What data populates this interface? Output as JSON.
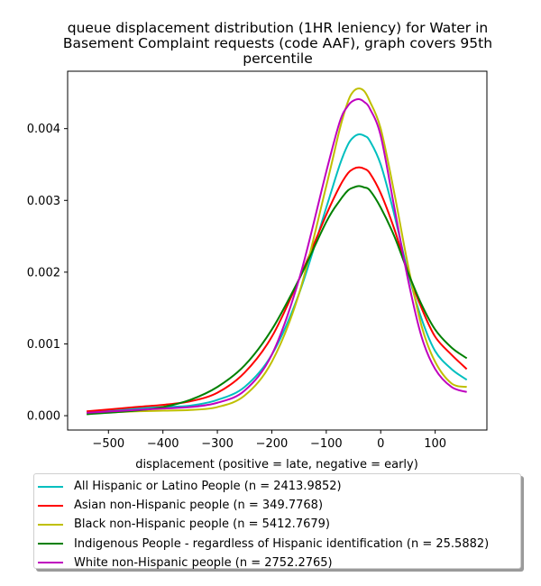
{
  "title_lines": [
    "queue displacement distribution (1HR leniency) for Water in",
    "Basement Complaint  requests (code AAF), graph covers 95th",
    "percentile"
  ],
  "chart_data": {
    "type": "line",
    "title": "queue displacement distribution (1HR leniency) for Water in Basement Complaint  requests (code AAF), graph covers 95th percentile",
    "xlabel": "displacement (positive = late, negative = early)",
    "ylabel": "",
    "xlim": [
      -575,
      195
    ],
    "ylim": [
      -0.0002,
      0.0048
    ],
    "x_ticks": [
      -500,
      -400,
      -300,
      -200,
      -100,
      0,
      100
    ],
    "x_tick_labels": [
      "−500",
      "−400",
      "−300",
      "−200",
      "−100",
      "0",
      "100"
    ],
    "y_ticks": [
      0,
      0.001,
      0.002,
      0.003,
      0.004
    ],
    "y_tick_labels": [
      "0.000",
      "0.001",
      "0.002",
      "0.003",
      "0.004"
    ],
    "grid": false,
    "legend_position": "below",
    "series": [
      {
        "name": "All Hispanic or Latino People (n = 2413.9852)",
        "color": "#00bfbf",
        "x": [
          -540,
          -450,
          -400,
          -350,
          -300,
          -250,
          -200,
          -150,
          -100,
          -75,
          -60,
          -50,
          -40,
          -30,
          -20,
          0,
          25,
          50,
          75,
          100,
          130,
          158
        ],
        "y": [
          5e-05,
          0.0001,
          0.00012,
          0.00014,
          0.00022,
          0.0004,
          0.00085,
          0.0017,
          0.0029,
          0.0035,
          0.00378,
          0.00388,
          0.00392,
          0.0039,
          0.00383,
          0.0035,
          0.0028,
          0.002,
          0.00135,
          0.0009,
          0.00065,
          0.0005
        ]
      },
      {
        "name": "Asian non-Hispanic people (n = 349.7768)",
        "color": "#ff0000",
        "x": [
          -540,
          -450,
          -400,
          -350,
          -300,
          -250,
          -200,
          -150,
          -100,
          -75,
          -60,
          -50,
          -40,
          -30,
          -20,
          0,
          25,
          50,
          75,
          100,
          130,
          158
        ],
        "y": [
          6e-05,
          0.00012,
          0.00015,
          0.0002,
          0.00032,
          0.0006,
          0.0011,
          0.0019,
          0.0028,
          0.0032,
          0.00338,
          0.00344,
          0.00346,
          0.00344,
          0.00338,
          0.0031,
          0.0026,
          0.002,
          0.0015,
          0.0011,
          0.00085,
          0.00065
        ]
      },
      {
        "name": "Black non-Hispanic people (n = 5412.7679)",
        "color": "#bfbf00",
        "x": [
          -540,
          -450,
          -400,
          -350,
          -300,
          -250,
          -200,
          -150,
          -100,
          -75,
          -60,
          -50,
          -40,
          -30,
          -20,
          0,
          25,
          50,
          75,
          100,
          130,
          158
        ],
        "y": [
          3e-05,
          6e-05,
          7e-05,
          8e-05,
          0.00012,
          0.00028,
          0.00075,
          0.0017,
          0.0032,
          0.004,
          0.00438,
          0.00452,
          0.00456,
          0.00452,
          0.00438,
          0.004,
          0.0031,
          0.0021,
          0.00125,
          0.00075,
          0.00045,
          0.0004
        ]
      },
      {
        "name": "Indigenous People - regardless of Hispanic identification (n = 25.5882)",
        "color": "#008000",
        "x": [
          -540,
          -450,
          -400,
          -350,
          -300,
          -250,
          -200,
          -150,
          -100,
          -75,
          -60,
          -50,
          -40,
          -30,
          -20,
          0,
          25,
          50,
          75,
          100,
          130,
          158
        ],
        "y": [
          2e-05,
          7e-05,
          0.00012,
          0.00022,
          0.0004,
          0.0007,
          0.0012,
          0.0019,
          0.0027,
          0.003,
          0.00314,
          0.00318,
          0.0032,
          0.00318,
          0.00314,
          0.0029,
          0.0025,
          0.002,
          0.00155,
          0.0012,
          0.00095,
          0.0008
        ]
      },
      {
        "name": "White non-Hispanic people (n = 2752.2765)",
        "color": "#bf00bf",
        "x": [
          -540,
          -450,
          -400,
          -350,
          -300,
          -250,
          -200,
          -150,
          -100,
          -75,
          -60,
          -50,
          -40,
          -30,
          -20,
          0,
          25,
          50,
          75,
          100,
          130,
          158
        ],
        "y": [
          4e-05,
          8e-05,
          0.0001,
          0.00012,
          0.00018,
          0.00035,
          0.00085,
          0.0019,
          0.0034,
          0.0041,
          0.00432,
          0.00439,
          0.00441,
          0.00437,
          0.00428,
          0.0039,
          0.0029,
          0.0019,
          0.0011,
          0.00065,
          0.0004,
          0.00033
        ]
      }
    ]
  }
}
